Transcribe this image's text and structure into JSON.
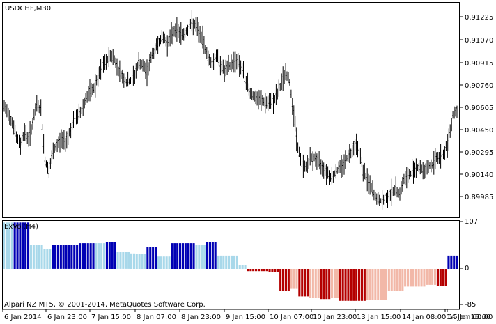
{
  "price_panel": {
    "symbol_label": "USDCHF,M30",
    "price_scale": [
      "0.91225",
      "0.91070",
      "0.90915",
      "0.90760",
      "0.90605",
      "0.90450",
      "0.90295",
      "0.90140",
      "0.89985"
    ]
  },
  "indicator_panel": {
    "label": "ExVol(H4)",
    "scale": [
      "107",
      "0",
      "-85"
    ],
    "copyright": "Alpari NZ MT5, © 2001-2014, MetaQuotes Software Corp."
  },
  "time_axis": {
    "labels": [
      "6 Jan 2014",
      "6 Jan 23:00",
      "7 Jan 15:00",
      "8 Jan 07:00",
      "8 Jan 23:00",
      "9 Jan 15:00",
      "10 Jan 07:00",
      "10 Jan 23:00",
      "13 Jan 15:00",
      "14 Jan 08:00",
      "14 Jan 16:00",
      "15 Jan 00:00"
    ]
  },
  "colors": {
    "background": "#ffffff",
    "candles": "#000000",
    "strong_up": "#0000b4",
    "weak_up": "#a8d8ea",
    "strong_down": "#b40000",
    "weak_down": "#f2b8a8",
    "grid": "#000000"
  },
  "chart_data": {
    "type": "candlestick_with_histogram",
    "symbol": "USDCHF",
    "timeframe": "M30",
    "price_ylim": [
      0.8988,
      0.9132
    ],
    "price_closes_approx": [
      0.9062,
      0.9058,
      0.9052,
      0.9041,
      0.9036,
      0.9045,
      0.904,
      0.9051,
      0.9064,
      0.906,
      0.9025,
      0.9018,
      0.9031,
      0.9036,
      0.904,
      0.9038,
      0.9045,
      0.9052,
      0.9056,
      0.906,
      0.9068,
      0.9072,
      0.9075,
      0.9082,
      0.909,
      0.9093,
      0.9098,
      0.9095,
      0.9088,
      0.9083,
      0.9079,
      0.908,
      0.9084,
      0.9093,
      0.909,
      0.9086,
      0.9096,
      0.9102,
      0.9108,
      0.911,
      0.9106,
      0.9111,
      0.9116,
      0.9113,
      0.9112,
      0.9116,
      0.912,
      0.9118,
      0.9112,
      0.9106,
      0.9096,
      0.9092,
      0.9098,
      0.9093,
      0.9086,
      0.909,
      0.9092,
      0.9095,
      0.909,
      0.9083,
      0.9074,
      0.907,
      0.9067,
      0.9067,
      0.9065,
      0.9064,
      0.9066,
      0.9071,
      0.9079,
      0.9086,
      0.9079,
      0.9057,
      0.9034,
      0.9022,
      0.9021,
      0.9026,
      0.9027,
      0.9025,
      0.9021,
      0.9018,
      0.9014,
      0.9016,
      0.902,
      0.9022,
      0.9027,
      0.9031,
      0.9037,
      0.9034,
      0.9018,
      0.9012,
      0.9006,
      0.9,
      0.8997,
      0.8998,
      0.9,
      0.9004,
      0.9005,
      0.9003,
      0.9012,
      0.9014,
      0.9018,
      0.9021,
      0.902,
      0.9018,
      0.9021,
      0.9022,
      0.9028,
      0.9027,
      0.9031,
      0.904,
      0.9057,
      0.906
    ],
    "indicator_name": "ExVol(H4)",
    "indicator_ylim": [
      -85,
      107
    ],
    "indicator_segments": [
      {
        "value": 105,
        "color": "weak_up",
        "bars": 4
      },
      {
        "value": 105,
        "color": "strong_up",
        "bars": 6
      },
      {
        "value": 55,
        "color": "weak_up",
        "bars": 5
      },
      {
        "value": 45,
        "color": "weak_up",
        "bars": 3
      },
      {
        "value": 55,
        "color": "strong_up",
        "bars": 10
      },
      {
        "value": 58,
        "color": "strong_up",
        "bars": 6
      },
      {
        "value": 58,
        "color": "weak_up",
        "bars": 4
      },
      {
        "value": 60,
        "color": "strong_up",
        "bars": 4
      },
      {
        "value": 38,
        "color": "weak_up",
        "bars": 5
      },
      {
        "value": 35,
        "color": "weak_up",
        "bars": 2
      },
      {
        "value": 33,
        "color": "weak_up",
        "bars": 4
      },
      {
        "value": 50,
        "color": "strong_up",
        "bars": 4
      },
      {
        "value": 28,
        "color": "weak_up",
        "bars": 5
      },
      {
        "value": 58,
        "color": "strong_up",
        "bars": 4
      },
      {
        "value": 58,
        "color": "strong_up",
        "bars": 5
      },
      {
        "value": 55,
        "color": "weak_up",
        "bars": 4
      },
      {
        "value": 60,
        "color": "strong_up",
        "bars": 4
      },
      {
        "value": 30,
        "color": "weak_up",
        "bars": 8
      },
      {
        "value": 8,
        "color": "weak_up",
        "bars": 3
      },
      {
        "value": -5,
        "color": "strong_down",
        "bars": 8
      },
      {
        "value": -7,
        "color": "strong_down",
        "bars": 4
      },
      {
        "value": -50,
        "color": "strong_down",
        "bars": 4
      },
      {
        "value": -45,
        "color": "weak_down",
        "bars": 3
      },
      {
        "value": -62,
        "color": "strong_down",
        "bars": 4
      },
      {
        "value": -65,
        "color": "weak_down",
        "bars": 4
      },
      {
        "value": -68,
        "color": "strong_down",
        "bars": 4
      },
      {
        "value": -65,
        "color": "weak_down",
        "bars": 3
      },
      {
        "value": -72,
        "color": "strong_down",
        "bars": 10
      },
      {
        "value": -70,
        "color": "weak_down",
        "bars": 8
      },
      {
        "value": -50,
        "color": "weak_down",
        "bars": 6
      },
      {
        "value": -40,
        "color": "weak_down",
        "bars": 8
      },
      {
        "value": -36,
        "color": "weak_down",
        "bars": 4
      },
      {
        "value": -38,
        "color": "strong_down",
        "bars": 4
      },
      {
        "value": 30,
        "color": "strong_up",
        "bars": 4
      }
    ]
  }
}
